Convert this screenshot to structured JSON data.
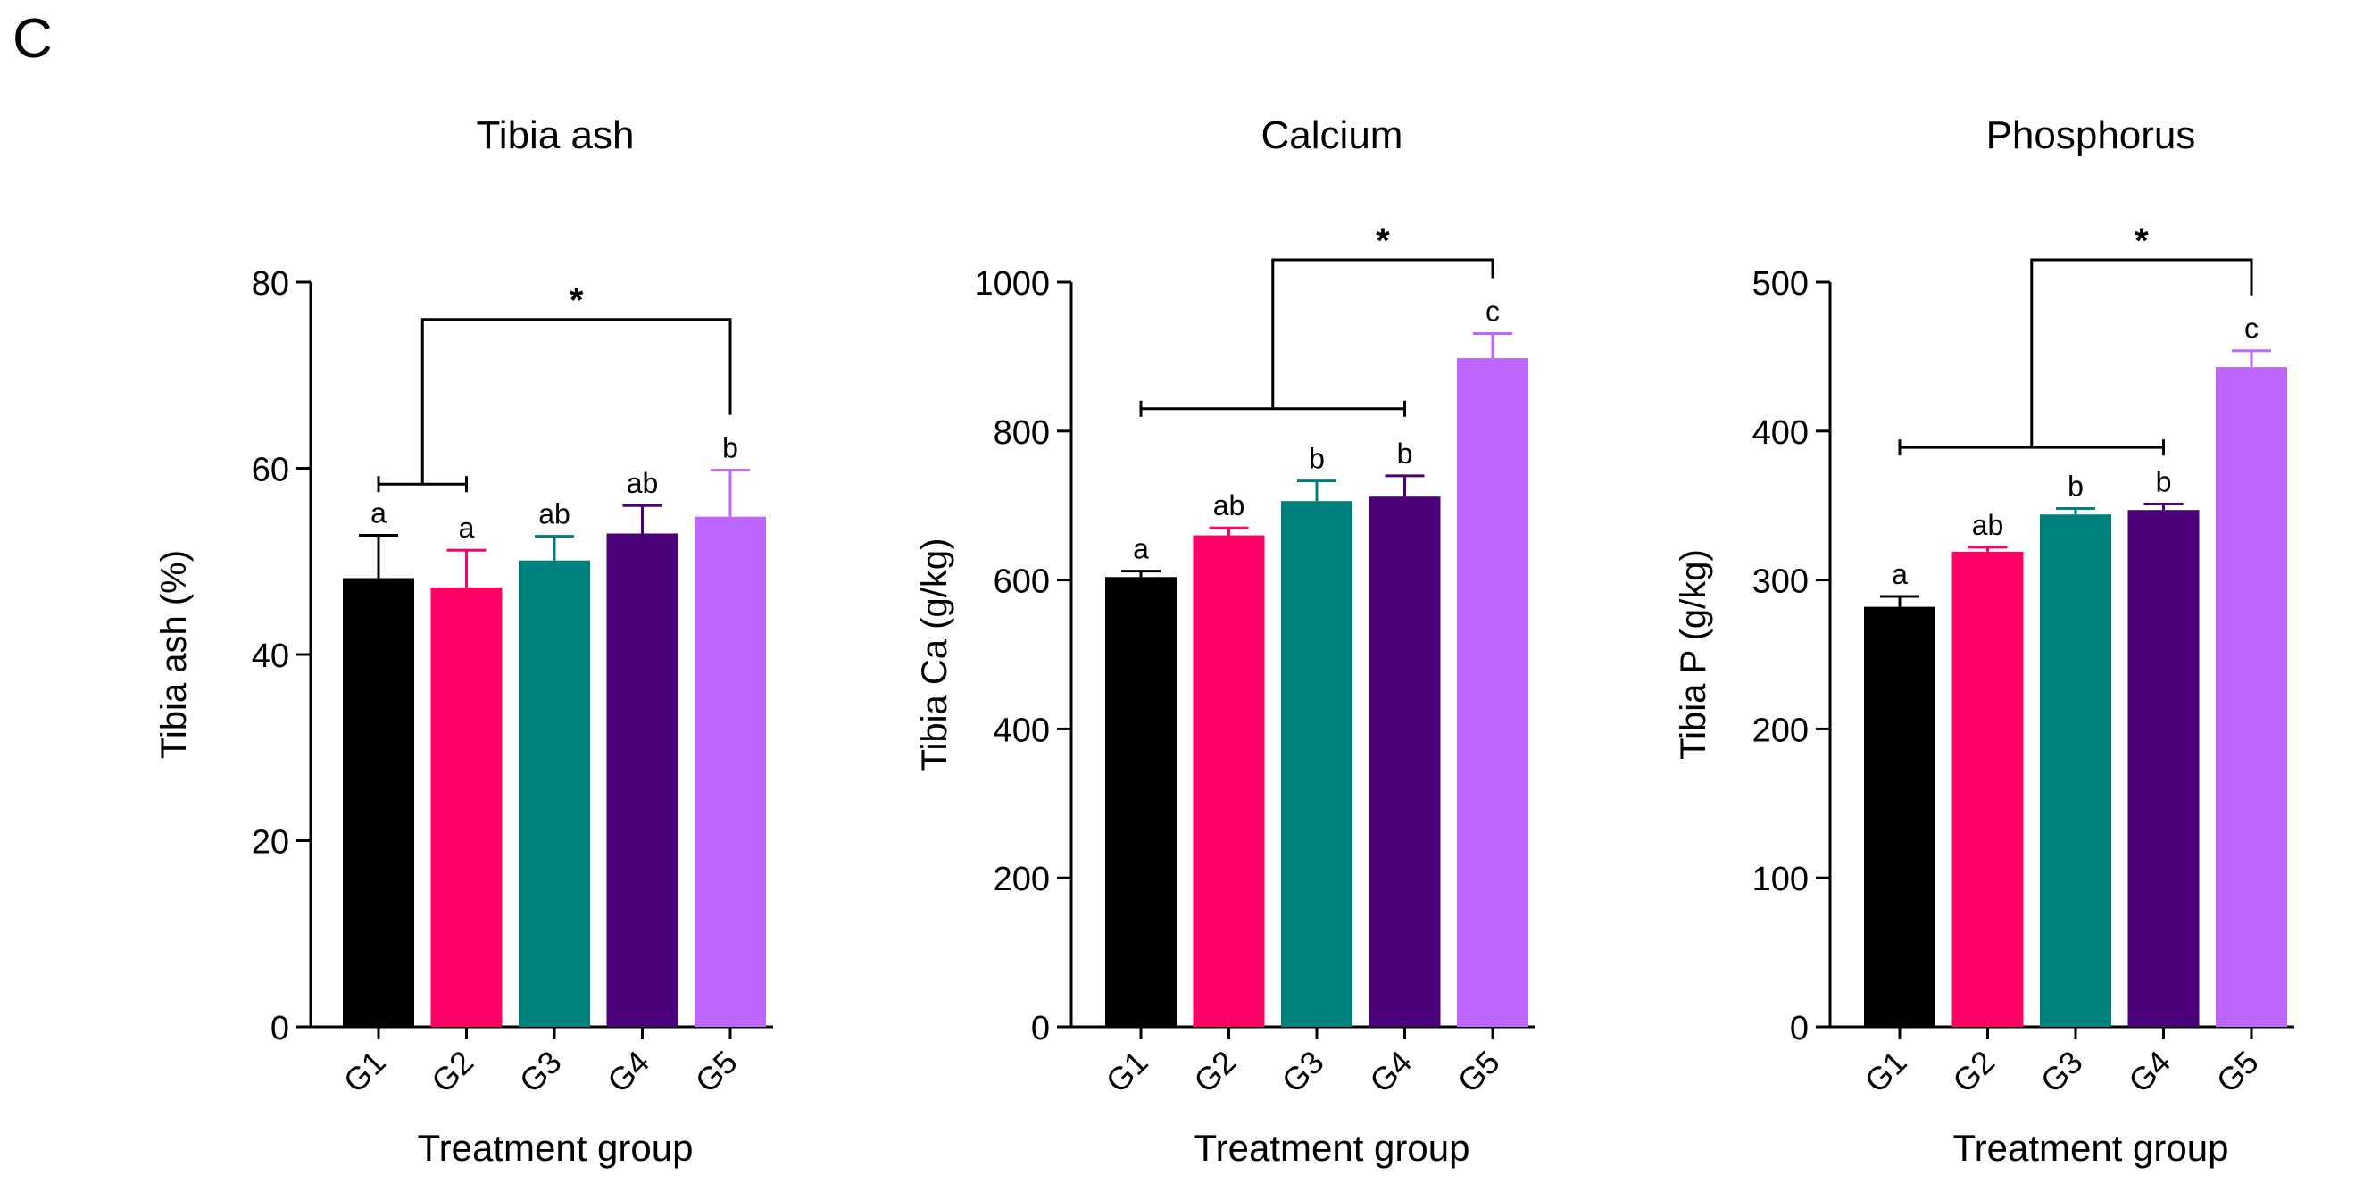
{
  "panel_label": "C",
  "chart_data": [
    {
      "type": "bar",
      "title": "Tibia ash",
      "xlabel": "Treatment group",
      "ylabel": "Tibia ash (%)",
      "ylim": [
        0,
        80
      ],
      "yticks": [
        0,
        20,
        40,
        60,
        80
      ],
      "categories": [
        "G1",
        "G2",
        "G3",
        "G4",
        "G5"
      ],
      "values": [
        48.2,
        47.2,
        50.1,
        53.0,
        54.8
      ],
      "errors": [
        4.6,
        4.0,
        2.6,
        3.0,
        5.0
      ],
      "letters": [
        "a",
        "a",
        "ab",
        "ab",
        "b"
      ],
      "colors": [
        "#000000",
        "#ff0066",
        "#00807c",
        "#4a0078",
        "#bf66ff"
      ],
      "bracket": {
        "group": [
          "G1",
          "G2"
        ],
        "versus": "G5",
        "y_group": 58.3,
        "y_top": 76,
        "symbol": "*"
      }
    },
    {
      "type": "bar",
      "title": "Calcium",
      "xlabel": "Treatment group",
      "ylabel": "Tibia Ca (g/kg)",
      "ylim": [
        0,
        1000
      ],
      "yticks": [
        0,
        200,
        400,
        600,
        800,
        1000
      ],
      "categories": [
        "G1",
        "G2",
        "G3",
        "G4",
        "G5"
      ],
      "values": [
        604,
        660,
        706,
        712,
        898
      ],
      "errors": [
        8,
        10,
        27,
        28,
        33
      ],
      "letters": [
        "a",
        "ab",
        "b",
        "b",
        "c"
      ],
      "colors": [
        "#000000",
        "#ff0066",
        "#00807c",
        "#4a0078",
        "#bf66ff"
      ],
      "bracket": {
        "group": [
          "G1",
          "G4"
        ],
        "versus": "G5",
        "y_group": 830,
        "y_top": 1030,
        "symbol": "*"
      }
    },
    {
      "type": "bar",
      "title": "Phosphorus",
      "xlabel": "Treatment group",
      "ylabel": "Tibia P (g/kg)",
      "ylim": [
        0,
        500
      ],
      "yticks": [
        0,
        100,
        200,
        300,
        400,
        500
      ],
      "categories": [
        "G1",
        "G2",
        "G3",
        "G4",
        "G5"
      ],
      "values": [
        282,
        319,
        344,
        347,
        443
      ],
      "errors": [
        7,
        3,
        4,
        4,
        11
      ],
      "letters": [
        "a",
        "ab",
        "b",
        "b",
        "c"
      ],
      "colors": [
        "#000000",
        "#ff0066",
        "#00807c",
        "#4a0078",
        "#bf66ff"
      ],
      "bracket": {
        "group": [
          "G1",
          "G4"
        ],
        "versus": "G5",
        "y_group": 389,
        "y_top": 515,
        "symbol": "*"
      }
    }
  ]
}
